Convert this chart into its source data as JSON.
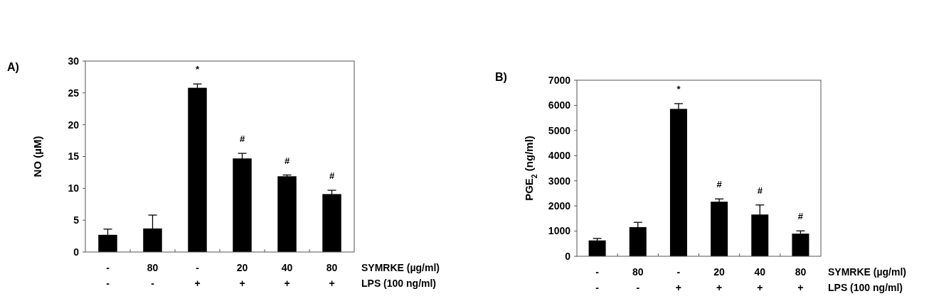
{
  "chart_data": [
    {
      "type": "bar",
      "ylabel": "NO (µM)",
      "categories": [
        "-\n-",
        "80\n-",
        "-\n+",
        "20\n+",
        "40\n+",
        "80\n+"
      ],
      "values": [
        2.7,
        3.7,
        25.8,
        14.7,
        11.9,
        9.1
      ],
      "errors": [
        0.9,
        2.1,
        0.6,
        0.8,
        0.2,
        0.6
      ],
      "color": "#000000",
      "ylim": [
        0,
        30
      ],
      "yticks": [
        0,
        5,
        10,
        15,
        20,
        25,
        30
      ],
      "grid": false,
      "annotations": [
        "A)",
        "SYMRKE (µg/ml)",
        "LPS (100 ng/ml)",
        {
          "text": "*",
          "x": "-\n+",
          "y": 25.8
        },
        {
          "text": "#",
          "x": "20\n+",
          "y": 14.7
        },
        {
          "text": "#",
          "x": "40\n+",
          "y": 11.9
        },
        {
          "text": "#",
          "x": "80\n+",
          "y": 9.1
        }
      ]
    },
    {
      "type": "bar",
      "ylabel": "PGE$_{2}$ (ng/ml)",
      "categories": [
        "-\n-",
        "80\n-",
        "-\n+",
        "20\n+",
        "40\n+",
        "80\n+"
      ],
      "values": [
        630,
        1160,
        5860,
        2170,
        1660,
        900
      ],
      "errors": [
        80,
        190,
        210,
        110,
        380,
        110
      ],
      "color": "#000000",
      "ylim": [
        0,
        7000
      ],
      "yticks": [
        0,
        1000,
        2000,
        3000,
        4000,
        5000,
        6000,
        7000
      ],
      "grid": false,
      "annotations": [
        "B)",
        "SYMRKE (µg/ml)",
        "LPS (100 ng/ml)",
        {
          "text": "*",
          "x": "-\n+",
          "y": 5860
        },
        {
          "text": "#",
          "x": "20\n+",
          "y": 2170
        },
        {
          "text": "#",
          "x": "40\n+",
          "y": 1660
        },
        {
          "text": "#",
          "x": "80\n+",
          "y": 900
        }
      ]
    }
  ]
}
